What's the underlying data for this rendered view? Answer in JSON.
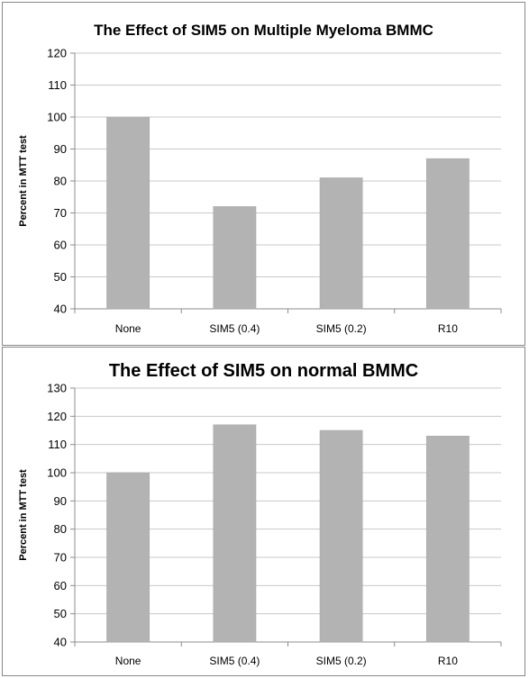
{
  "chart_data": [
    {
      "type": "bar",
      "title": "The Effect of SIM5 on Multiple Myeloma BMMC",
      "xlabel": "",
      "ylabel": "Percent in MTT test",
      "categories": [
        "None",
        "SIM5 (0.4)",
        "SIM5 (0.2)",
        "R10"
      ],
      "values": [
        100,
        72,
        81,
        87
      ],
      "ylim": [
        40,
        120
      ],
      "yticks": [
        40,
        50,
        60,
        70,
        80,
        90,
        100,
        110,
        120
      ],
      "grid": true,
      "bar_color": "#b3b3b3"
    },
    {
      "type": "bar",
      "title": "The Effect of SIM5 on normal BMMC",
      "xlabel": "",
      "ylabel": "Percent in MTT test",
      "categories": [
        "None",
        "SIM5 (0.4)",
        "SIM5 (0.2)",
        "R10"
      ],
      "values": [
        100,
        117,
        115,
        113
      ],
      "ylim": [
        40,
        130
      ],
      "yticks": [
        40,
        50,
        60,
        70,
        80,
        90,
        100,
        110,
        120,
        130
      ],
      "grid": true,
      "bar_color": "#b3b3b3"
    }
  ]
}
